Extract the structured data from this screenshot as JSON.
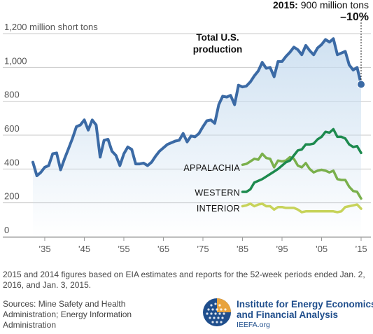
{
  "chart_data": {
    "type": "line",
    "title": "",
    "xlabel": "",
    "ylabel": "",
    "ylim": [
      0,
      1200
    ],
    "xlim": [
      1930,
      2016
    ],
    "y_unit_label": "million short tons",
    "y_ticks": [
      {
        "value": 0,
        "label": "0"
      },
      {
        "value": 200,
        "label": "200"
      },
      {
        "value": 400,
        "label": "400"
      },
      {
        "value": 600,
        "label": "600"
      },
      {
        "value": 800,
        "label": "800"
      },
      {
        "value": 1000,
        "label": "1,000"
      },
      {
        "value": 1200,
        "label": "1,200"
      }
    ],
    "x_ticks": [
      {
        "value": 1935,
        "label": "’35"
      },
      {
        "value": 1945,
        "label": "’45"
      },
      {
        "value": 1955,
        "label": "’55"
      },
      {
        "value": 1965,
        "label": "’65"
      },
      {
        "value": 1975,
        "label": "’75"
      },
      {
        "value": 1985,
        "label": "’85"
      },
      {
        "value": 1995,
        "label": "’95"
      },
      {
        "value": 2005,
        "label": "’05"
      },
      {
        "value": 2015,
        "label": "’15"
      }
    ],
    "grid": "horizontal",
    "series": [
      {
        "name": "Total U.S. production",
        "label_lines": [
          "Total U.S.",
          "production"
        ],
        "color": "#3b6aa5",
        "area_fill": true,
        "points": [
          [
            1932,
            440
          ],
          [
            1933,
            360
          ],
          [
            1934,
            380
          ],
          [
            1935,
            410
          ],
          [
            1936,
            420
          ],
          [
            1937,
            490
          ],
          [
            1938,
            495
          ],
          [
            1939,
            395
          ],
          [
            1940,
            460
          ],
          [
            1941,
            520
          ],
          [
            1942,
            580
          ],
          [
            1943,
            650
          ],
          [
            1944,
            660
          ],
          [
            1945,
            690
          ],
          [
            1946,
            630
          ],
          [
            1947,
            690
          ],
          [
            1948,
            660
          ],
          [
            1949,
            470
          ],
          [
            1950,
            570
          ],
          [
            1951,
            575
          ],
          [
            1952,
            505
          ],
          [
            1953,
            480
          ],
          [
            1954,
            420
          ],
          [
            1955,
            490
          ],
          [
            1956,
            530
          ],
          [
            1957,
            515
          ],
          [
            1958,
            430
          ],
          [
            1959,
            430
          ],
          [
            1960,
            435
          ],
          [
            1961,
            420
          ],
          [
            1962,
            440
          ],
          [
            1963,
            475
          ],
          [
            1964,
            505
          ],
          [
            1965,
            525
          ],
          [
            1966,
            545
          ],
          [
            1967,
            555
          ],
          [
            1968,
            565
          ],
          [
            1969,
            570
          ],
          [
            1970,
            610
          ],
          [
            1971,
            560
          ],
          [
            1972,
            595
          ],
          [
            1973,
            590
          ],
          [
            1974,
            610
          ],
          [
            1975,
            650
          ],
          [
            1976,
            685
          ],
          [
            1977,
            690
          ],
          [
            1978,
            670
          ],
          [
            1979,
            780
          ],
          [
            1980,
            830
          ],
          [
            1981,
            825
          ],
          [
            1982,
            835
          ],
          [
            1983,
            780
          ],
          [
            1984,
            895
          ],
          [
            1985,
            885
          ],
          [
            1986,
            890
          ],
          [
            1987,
            915
          ],
          [
            1988,
            950
          ],
          [
            1989,
            980
          ],
          [
            1990,
            1030
          ],
          [
            1991,
            995
          ],
          [
            1992,
            1000
          ],
          [
            1993,
            945
          ],
          [
            1994,
            1035
          ],
          [
            1995,
            1035
          ],
          [
            1996,
            1065
          ],
          [
            1997,
            1090
          ],
          [
            1998,
            1120
          ],
          [
            1999,
            1105
          ],
          [
            2000,
            1075
          ],
          [
            2001,
            1130
          ],
          [
            2002,
            1100
          ],
          [
            2003,
            1075
          ],
          [
            2004,
            1115
          ],
          [
            2005,
            1135
          ],
          [
            2006,
            1165
          ],
          [
            2007,
            1150
          ],
          [
            2008,
            1170
          ],
          [
            2009,
            1075
          ],
          [
            2010,
            1085
          ],
          [
            2011,
            1095
          ],
          [
            2012,
            1015
          ],
          [
            2013,
            985
          ],
          [
            2014,
            1000
          ],
          [
            2015,
            900
          ]
        ]
      },
      {
        "name": "APPALACHIA",
        "color": "#7ab04c",
        "area_fill": false,
        "points": [
          [
            1985,
            425
          ],
          [
            1986,
            430
          ],
          [
            1987,
            445
          ],
          [
            1988,
            460
          ],
          [
            1989,
            455
          ],
          [
            1990,
            490
          ],
          [
            1991,
            465
          ],
          [
            1992,
            460
          ],
          [
            1993,
            410
          ],
          [
            1994,
            450
          ],
          [
            1995,
            445
          ],
          [
            1996,
            450
          ],
          [
            1997,
            470
          ],
          [
            1998,
            460
          ],
          [
            1999,
            420
          ],
          [
            2000,
            410
          ],
          [
            2001,
            435
          ],
          [
            2002,
            400
          ],
          [
            2003,
            380
          ],
          [
            2004,
            390
          ],
          [
            2005,
            395
          ],
          [
            2006,
            390
          ],
          [
            2007,
            380
          ],
          [
            2008,
            390
          ],
          [
            2009,
            340
          ],
          [
            2010,
            335
          ],
          [
            2011,
            335
          ],
          [
            2012,
            295
          ],
          [
            2013,
            270
          ],
          [
            2014,
            265
          ],
          [
            2015,
            225
          ]
        ]
      },
      {
        "name": "WESTERN",
        "color": "#1d8a4e",
        "area_fill": false,
        "points": [
          [
            1985,
            265
          ],
          [
            1986,
            265
          ],
          [
            1987,
            280
          ],
          [
            1988,
            320
          ],
          [
            1989,
            330
          ],
          [
            1990,
            340
          ],
          [
            1991,
            355
          ],
          [
            1992,
            370
          ],
          [
            1993,
            385
          ],
          [
            1994,
            400
          ],
          [
            1995,
            420
          ],
          [
            1996,
            440
          ],
          [
            1997,
            450
          ],
          [
            1998,
            480
          ],
          [
            1999,
            510
          ],
          [
            2000,
            515
          ],
          [
            2001,
            545
          ],
          [
            2002,
            545
          ],
          [
            2003,
            550
          ],
          [
            2004,
            575
          ],
          [
            2005,
            590
          ],
          [
            2006,
            620
          ],
          [
            2007,
            615
          ],
          [
            2008,
            635
          ],
          [
            2009,
            590
          ],
          [
            2010,
            590
          ],
          [
            2011,
            580
          ],
          [
            2012,
            545
          ],
          [
            2013,
            530
          ],
          [
            2014,
            535
          ],
          [
            2015,
            495
          ]
        ]
      },
      {
        "name": "INTERIOR",
        "color": "#c7d35a",
        "area_fill": false,
        "points": [
          [
            1985,
            180
          ],
          [
            1986,
            185
          ],
          [
            1987,
            195
          ],
          [
            1988,
            180
          ],
          [
            1989,
            190
          ],
          [
            1990,
            195
          ],
          [
            1991,
            180
          ],
          [
            1992,
            180
          ],
          [
            1993,
            160
          ],
          [
            1994,
            175
          ],
          [
            1995,
            175
          ],
          [
            1996,
            170
          ],
          [
            1997,
            170
          ],
          [
            1998,
            170
          ],
          [
            1999,
            160
          ],
          [
            2000,
            145
          ],
          [
            2001,
            150
          ],
          [
            2002,
            150
          ],
          [
            2003,
            150
          ],
          [
            2004,
            150
          ],
          [
            2005,
            150
          ],
          [
            2006,
            150
          ],
          [
            2007,
            150
          ],
          [
            2008,
            150
          ],
          [
            2009,
            145
          ],
          [
            2010,
            150
          ],
          [
            2011,
            175
          ],
          [
            2012,
            180
          ],
          [
            2013,
            185
          ],
          [
            2014,
            190
          ],
          [
            2015,
            165
          ]
        ]
      }
    ],
    "annotation": {
      "year_label": "2015:",
      "value_text": "900 million tons",
      "change": "–10%",
      "x": 2015,
      "y": 900
    }
  },
  "footnote": "2015 and 2014 figures based on EIA estimates and reports for the 52-week periods ended Jan. 2, 2016, and Jan. 3, 2015.",
  "sources": "Sources: Mine Safety and Health Administration; Energy Information Administration",
  "logo": {
    "name": "Institute for Energy Economics and Financial Analysis",
    "url": "IEEFA.org",
    "colors": {
      "primary": "#1f4e8c",
      "accent": "#e8a33d"
    }
  }
}
